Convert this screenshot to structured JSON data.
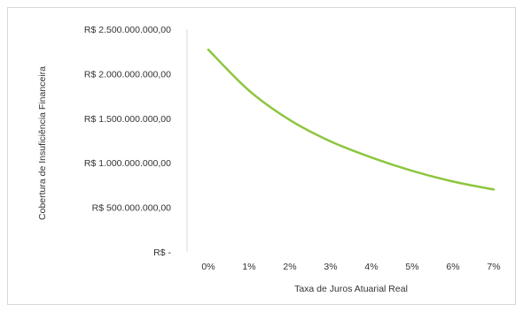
{
  "chart_data": {
    "type": "line",
    "title": "",
    "xlabel": "Taxa de Juros Atuarial Real",
    "ylabel": "Cobertura de Insuficiência Financeira",
    "categories": [
      "0%",
      "1%",
      "2%",
      "3%",
      "4%",
      "5%",
      "6%",
      "7%"
    ],
    "y_tick_labels": [
      "R$ -",
      "R$ 500.000.000,00",
      "R$ 1.000.000.000,00",
      "R$ 1.500.000.000,00",
      "R$ 2.000.000.000,00",
      "R$ 2.500.000.000,00"
    ],
    "y_ticks": [
      0,
      500000000,
      1000000000,
      1500000000,
      2000000000,
      2500000000
    ],
    "ylim": [
      0,
      2500000000
    ],
    "grid": false,
    "legend": "none",
    "series": [
      {
        "color": "#8dc63f",
        "values": [
          2270000000,
          1810000000,
          1480000000,
          1240000000,
          1060000000,
          910000000,
          790000000,
          700000000
        ]
      }
    ]
  }
}
